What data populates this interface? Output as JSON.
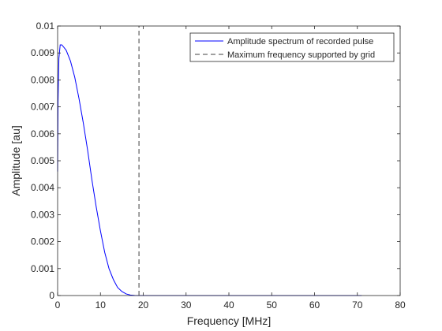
{
  "chart_data": {
    "type": "line",
    "title": "",
    "xlabel": "Frequency [MHz]",
    "ylabel": "Amplitude [au]",
    "xlim": [
      0,
      80
    ],
    "ylim": [
      0,
      0.01
    ],
    "xticks": [
      0,
      10,
      20,
      30,
      40,
      50,
      60,
      70,
      80
    ],
    "yticks": [
      0,
      0.001,
      0.002,
      0.003,
      0.004,
      0.005,
      0.006,
      0.007,
      0.008,
      0.009,
      0.01
    ],
    "xtick_labels": [
      "0",
      "10",
      "20",
      "30",
      "40",
      "50",
      "60",
      "70",
      "80"
    ],
    "ytick_labels": [
      "0",
      "0.001",
      "0.002",
      "0.003",
      "0.004",
      "0.005",
      "0.006",
      "0.007",
      "0.008",
      "0.009",
      "0.01"
    ],
    "grid": false,
    "legend_position": "top-right",
    "series": [
      {
        "name": "Amplitude spectrum of recorded pulse",
        "color": "#0000ff",
        "style": "solid",
        "x": [
          0,
          0.1,
          0.3,
          0.6,
          1,
          1.5,
          2,
          3,
          4,
          5,
          6,
          7,
          8,
          9,
          10,
          11,
          12,
          13,
          14,
          15,
          16,
          17,
          18,
          19,
          20,
          25,
          30,
          40,
          50,
          60,
          70,
          71
        ],
        "y": [
          0.0046,
          0.0072,
          0.0088,
          0.0093,
          0.0093,
          0.0092,
          0.0091,
          0.0087,
          0.0081,
          0.0073,
          0.0064,
          0.0054,
          0.0043,
          0.0033,
          0.0024,
          0.0016,
          0.001,
          0.0006,
          0.0003,
          0.00015,
          6e-05,
          2e-05,
          5e-06,
          0.0,
          0.0,
          0.0,
          0.0,
          0.0,
          0.0,
          0.0,
          0.0,
          0.0
        ]
      },
      {
        "name": "Maximum frequency supported by grid",
        "color": "#404040",
        "style": "dashed",
        "x": [
          19,
          19
        ],
        "y": [
          0,
          0.01
        ]
      }
    ]
  }
}
